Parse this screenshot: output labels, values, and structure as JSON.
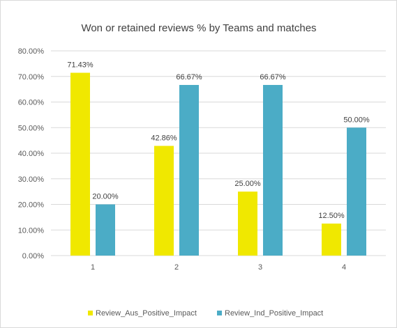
{
  "chart_data": {
    "type": "bar",
    "title": "Won or retained reviews % by Teams and matches",
    "xlabel": "",
    "ylabel": "",
    "categories": [
      "1",
      "2",
      "3",
      "4"
    ],
    "series": [
      {
        "name": "Review_Aus_Positive_Impact",
        "values": [
          71.43,
          42.86,
          25.0,
          12.5
        ],
        "labels": [
          "71.43%",
          "42.86%",
          "25.00%",
          "12.50%"
        ],
        "color": "#f0e800"
      },
      {
        "name": "Review_Ind_Positive_Impact",
        "values": [
          20.0,
          66.67,
          66.67,
          50.0
        ],
        "labels": [
          "20.00%",
          "66.67%",
          "66.67%",
          "50.00%"
        ],
        "color": "#4bacc6"
      }
    ],
    "ylim": [
      0,
      80
    ],
    "yticks": [
      0,
      10,
      20,
      30,
      40,
      50,
      60,
      70,
      80
    ],
    "ytick_labels": [
      "0.00%",
      "10.00%",
      "20.00%",
      "30.00%",
      "40.00%",
      "50.00%",
      "60.00%",
      "70.00%",
      "80.00%"
    ],
    "grid": true,
    "legend_position": "bottom",
    "gridline_color": "#d9d9d9"
  }
}
